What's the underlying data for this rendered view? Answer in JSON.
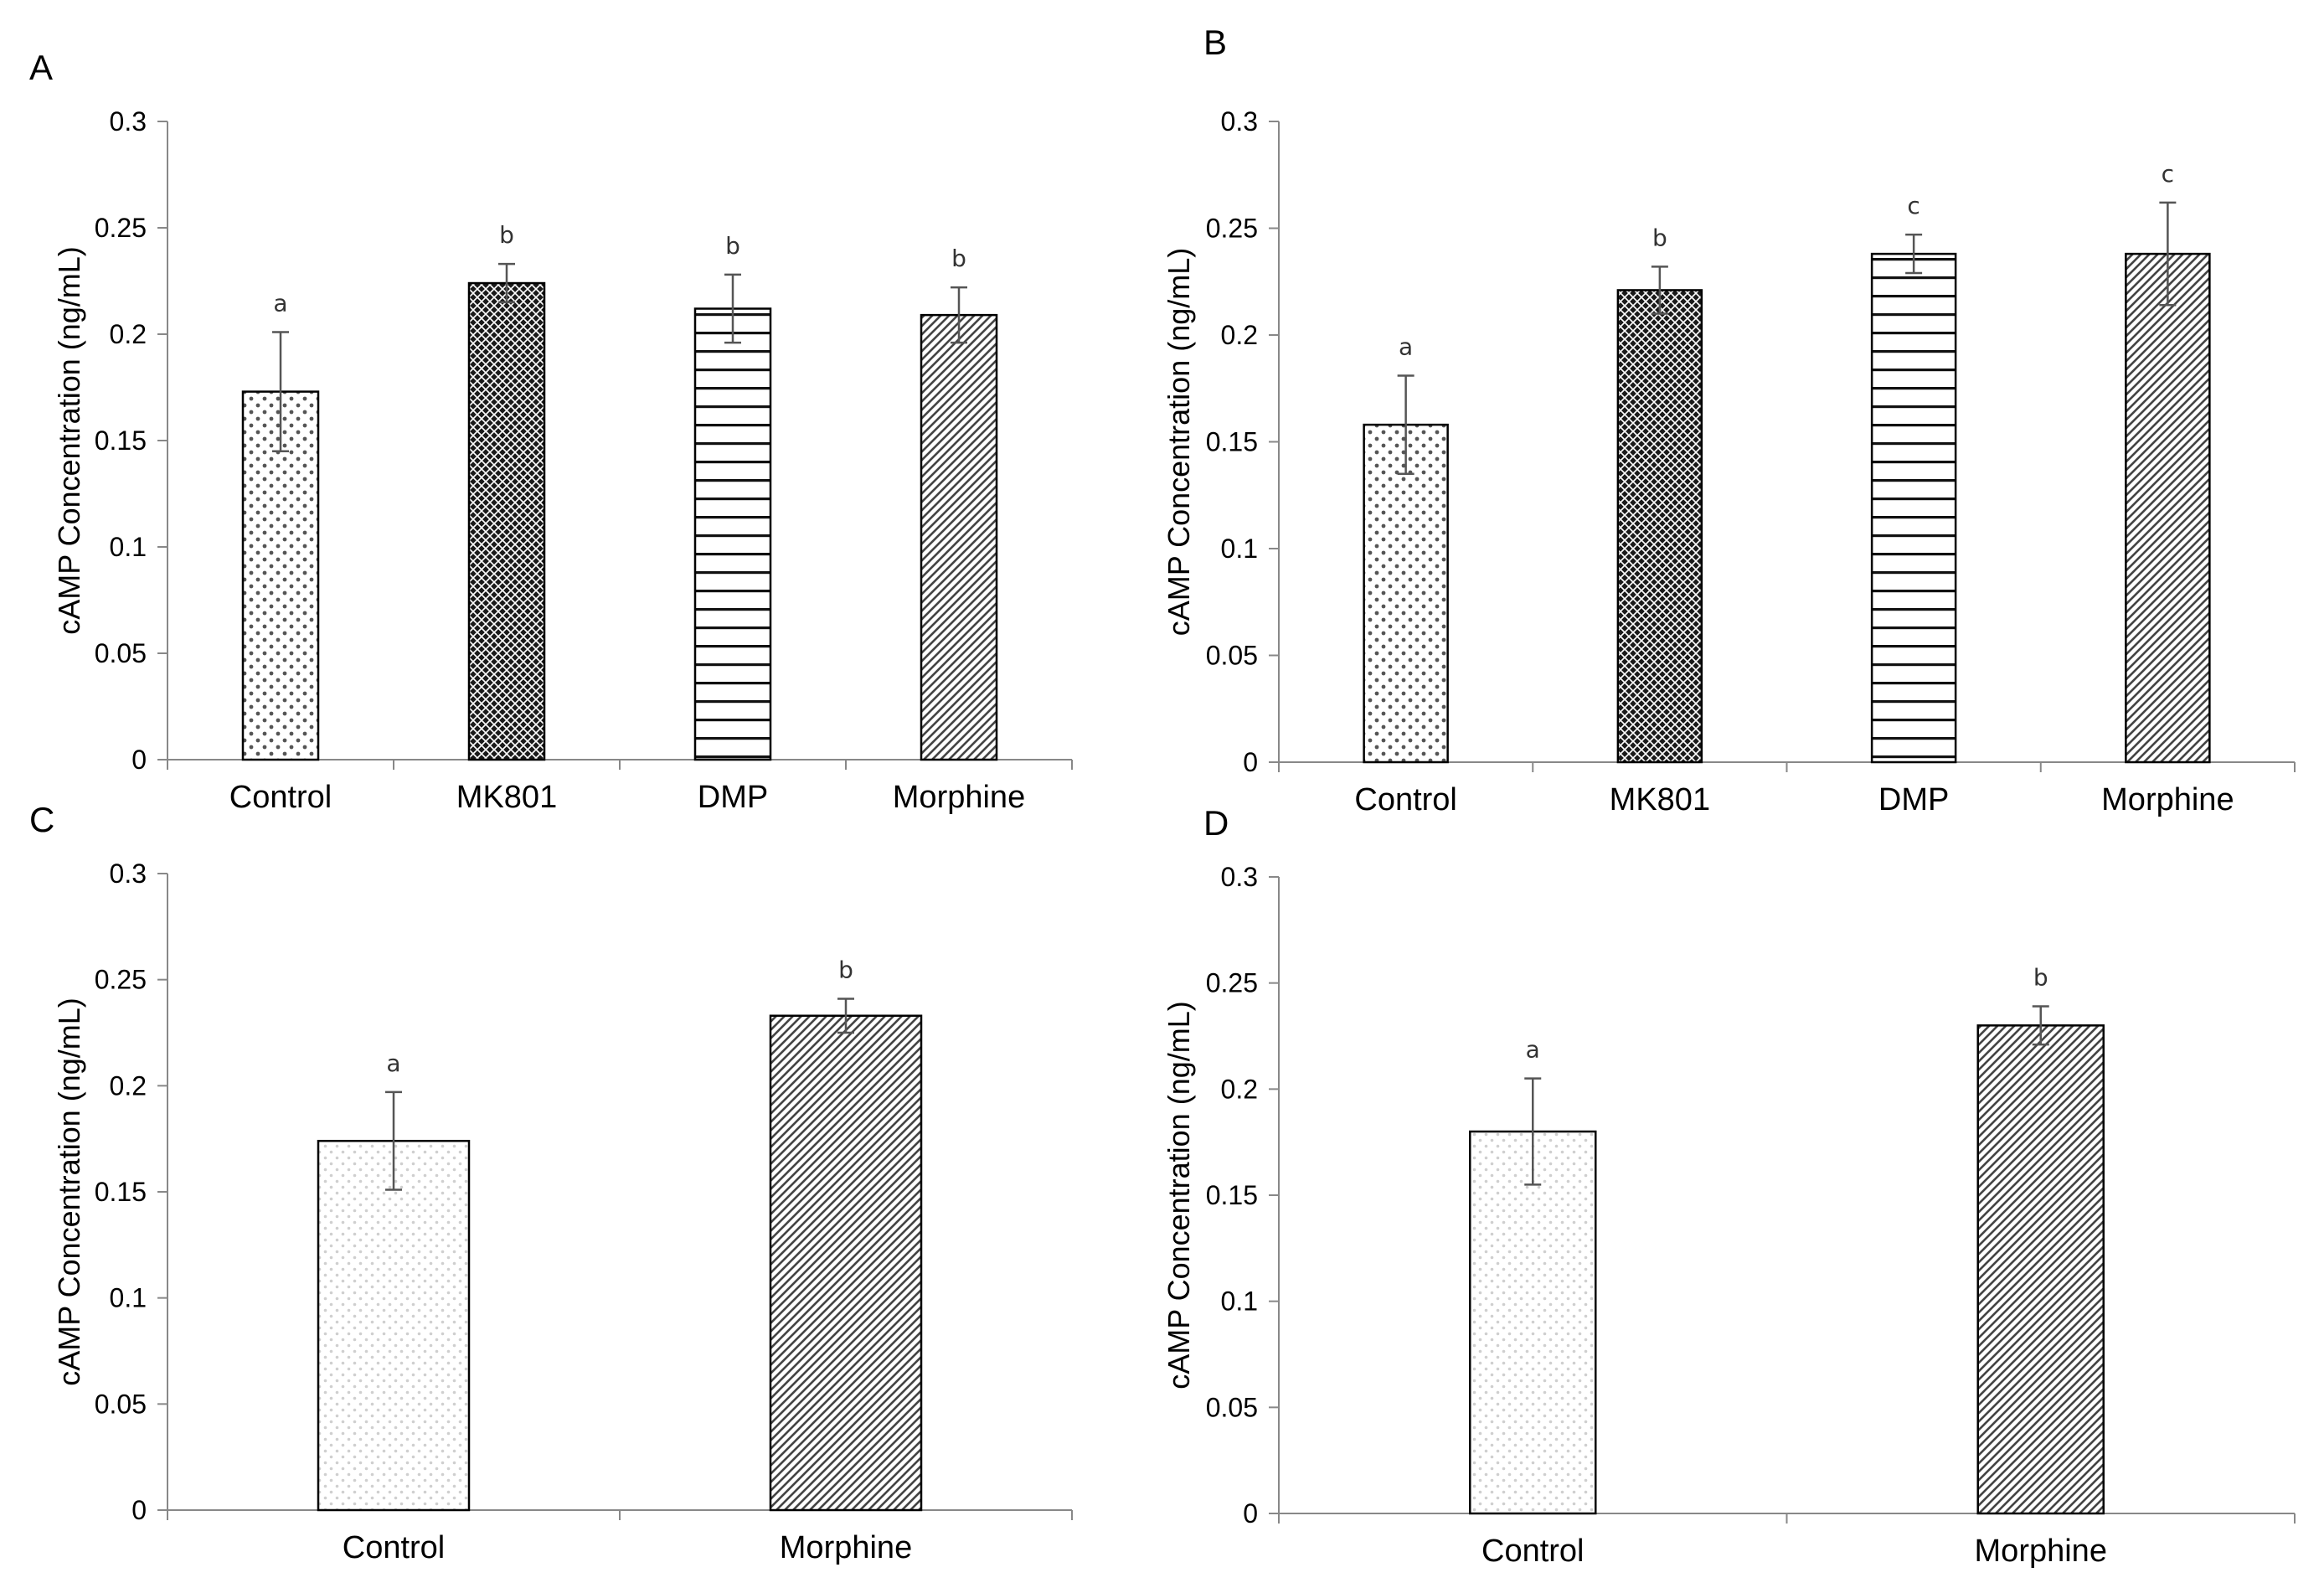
{
  "chart_data": [
    {
      "panel": "A",
      "type": "bar",
      "ylabel": "cAMP Concentration (ng/mL)",
      "ylim": [
        0,
        0.3
      ],
      "yticks": [
        "0",
        "0.05",
        "0.1",
        "0.15",
        "0.2",
        "0.25",
        "0.3"
      ],
      "categories": [
        "Control",
        "MK801",
        "DMP",
        "Morphine"
      ],
      "values": [
        0.173,
        0.224,
        0.212,
        0.209
      ],
      "errors": [
        0.028,
        0.009,
        0.016,
        0.013
      ],
      "significance": [
        "a",
        "b",
        "b",
        "b"
      ],
      "patterns": [
        "dots",
        "crosshatch",
        "hlines",
        "diag"
      ]
    },
    {
      "panel": "B",
      "type": "bar",
      "ylabel": "cAMP Concentration (ng/mL)",
      "ylim": [
        0,
        0.3
      ],
      "yticks": [
        "0",
        "0.05",
        "0.1",
        "0.15",
        "0.2",
        "0.25",
        "0.3"
      ],
      "categories": [
        "Control",
        "MK801",
        "DMP",
        "Morphine"
      ],
      "values": [
        0.158,
        0.221,
        0.238,
        0.238
      ],
      "errors": [
        0.023,
        0.011,
        0.009,
        0.024
      ],
      "significance": [
        "a",
        "b",
        "c",
        "c"
      ],
      "patterns": [
        "dots",
        "crosshatch",
        "hlines",
        "diag"
      ]
    },
    {
      "panel": "C",
      "type": "bar",
      "ylabel": "cAMP Concentration (ng/mL)",
      "ylim": [
        0,
        0.3
      ],
      "yticks": [
        "0",
        "0.05",
        "0.1",
        "0.15",
        "0.2",
        "0.25",
        "0.3"
      ],
      "categories": [
        "Control",
        "Morphine"
      ],
      "values": [
        0.174,
        0.233
      ],
      "errors": [
        0.023,
        0.008
      ],
      "significance": [
        "a",
        "b"
      ],
      "patterns": [
        "lightdots",
        "diag"
      ]
    },
    {
      "panel": "D",
      "type": "bar",
      "ylabel": "cAMP Concentration (ng/mL)",
      "ylim": [
        0,
        0.3
      ],
      "yticks": [
        "0",
        "0.05",
        "0.1",
        "0.15",
        "0.2",
        "0.25",
        "0.3"
      ],
      "categories": [
        "Control",
        "Morphine"
      ],
      "values": [
        0.18,
        0.23
      ],
      "errors": [
        0.025,
        0.009
      ],
      "significance": [
        "a",
        "b"
      ],
      "patterns": [
        "lightdots",
        "diag"
      ]
    }
  ]
}
